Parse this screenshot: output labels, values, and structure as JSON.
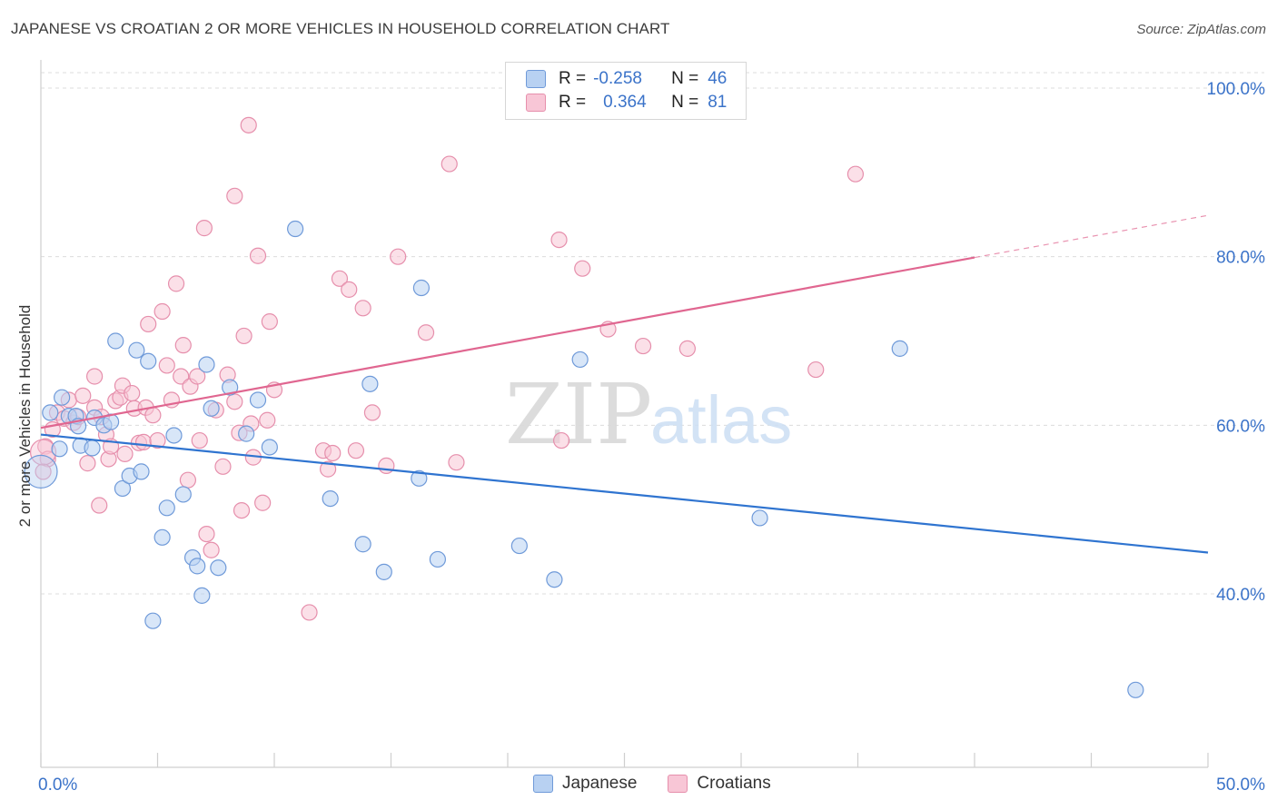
{
  "title": "JAPANESE VS CROATIAN 2 OR MORE VEHICLES IN HOUSEHOLD CORRELATION CHART",
  "source": "Source: ZipAtlas.com",
  "watermark": {
    "zip": "ZIP",
    "atlas": "atlas"
  },
  "legend": {
    "rows": [
      {
        "r_label": "R =",
        "r_value": "-0.258",
        "n_label": "N =",
        "n_value": "46"
      },
      {
        "r_label": "R =",
        "r_value": "0.364",
        "n_label": "N =",
        "n_value": "81"
      }
    ]
  },
  "bottom_legend": [
    "Japanese",
    "Croatians"
  ],
  "colors": {
    "japanese_fill": "#b8d1f2",
    "japanese_stroke": "#6f9ad9",
    "japanese_line": "#2f74d0",
    "croatian_fill": "#f8c6d6",
    "croatian_stroke": "#e68fac",
    "croatian_line": "#e06690",
    "axis_text": "#3b73c9",
    "grid": "#dcdcdc"
  },
  "chart_data": {
    "type": "scatter",
    "title": "JAPANESE VS CROATIAN 2 OR MORE VEHICLES IN HOUSEHOLD CORRELATION CHART",
    "xlabel": "",
    "ylabel": "2 or more Vehicles in Household",
    "xlim": [
      0,
      50
    ],
    "ylim": [
      20,
      102
    ],
    "x_tick_labels": [
      "0.0%",
      "50.0%"
    ],
    "y_ticks": [
      40,
      60,
      80,
      100
    ],
    "y_tick_labels": [
      "40.0%",
      "60.0%",
      "80.0%",
      "100.0%"
    ],
    "grid": true,
    "series": [
      {
        "name": "Japanese",
        "r": -0.258,
        "n": 46,
        "trend": {
          "x": [
            0,
            50
          ],
          "y": [
            58.9,
            44.9
          ]
        },
        "points": [
          [
            0.4,
            61.5
          ],
          [
            0.8,
            57.2
          ],
          [
            0.9,
            63.3
          ],
          [
            1.2,
            61.1
          ],
          [
            1.5,
            61.1
          ],
          [
            1.6,
            59.9
          ],
          [
            1.7,
            57.6
          ],
          [
            2.2,
            57.3
          ],
          [
            2.3,
            60.9
          ],
          [
            2.7,
            60.0
          ],
          [
            3.0,
            60.4
          ],
          [
            3.2,
            70.0
          ],
          [
            3.5,
            52.5
          ],
          [
            3.8,
            54.0
          ],
          [
            4.1,
            68.9
          ],
          [
            4.3,
            54.5
          ],
          [
            4.6,
            67.6
          ],
          [
            4.8,
            36.8
          ],
          [
            5.2,
            46.7
          ],
          [
            5.4,
            50.2
          ],
          [
            5.7,
            58.8
          ],
          [
            6.1,
            51.8
          ],
          [
            6.5,
            44.3
          ],
          [
            6.7,
            43.3
          ],
          [
            6.9,
            39.8
          ],
          [
            7.1,
            67.2
          ],
          [
            7.3,
            62.0
          ],
          [
            7.6,
            43.1
          ],
          [
            8.1,
            64.5
          ],
          [
            8.8,
            59.0
          ],
          [
            9.3,
            63.0
          ],
          [
            9.8,
            57.4
          ],
          [
            10.9,
            83.3
          ],
          [
            12.4,
            51.3
          ],
          [
            13.8,
            45.9
          ],
          [
            14.1,
            64.9
          ],
          [
            14.7,
            42.6
          ],
          [
            16.2,
            53.7
          ],
          [
            16.3,
            76.3
          ],
          [
            17.0,
            44.1
          ],
          [
            20.5,
            45.7
          ],
          [
            22.0,
            41.7
          ],
          [
            23.1,
            67.8
          ],
          [
            30.8,
            49.0
          ],
          [
            36.8,
            69.1
          ],
          [
            46.9,
            28.6
          ]
        ]
      },
      {
        "name": "Croatians",
        "r": 0.364,
        "n": 81,
        "trend": {
          "x": [
            0,
            40
          ],
          "y": [
            59.7,
            79.9
          ]
        },
        "trend_dashed": {
          "x": [
            40,
            50
          ],
          "y": [
            79.9,
            84.9
          ]
        },
        "points": [
          [
            0.2,
            57.5
          ],
          [
            0.3,
            56.0
          ],
          [
            0.5,
            59.5
          ],
          [
            0.7,
            61.5
          ],
          [
            1.0,
            60.8
          ],
          [
            1.2,
            63.0
          ],
          [
            1.4,
            60.3
          ],
          [
            1.6,
            61.0
          ],
          [
            1.8,
            63.5
          ],
          [
            2.0,
            55.5
          ],
          [
            2.3,
            62.1
          ],
          [
            2.3,
            65.8
          ],
          [
            2.5,
            50.5
          ],
          [
            2.6,
            61.0
          ],
          [
            2.8,
            58.9
          ],
          [
            2.9,
            56.0
          ],
          [
            3.0,
            57.5
          ],
          [
            3.2,
            62.9
          ],
          [
            3.4,
            63.3
          ],
          [
            3.5,
            64.7
          ],
          [
            3.6,
            56.6
          ],
          [
            3.9,
            63.8
          ],
          [
            4.0,
            62.0
          ],
          [
            4.2,
            57.9
          ],
          [
            4.4,
            58.0
          ],
          [
            4.5,
            62.1
          ],
          [
            4.6,
            72.0
          ],
          [
            4.8,
            61.2
          ],
          [
            5.0,
            58.2
          ],
          [
            5.2,
            73.5
          ],
          [
            5.4,
            67.1
          ],
          [
            5.6,
            63.0
          ],
          [
            5.8,
            76.8
          ],
          [
            6.0,
            65.8
          ],
          [
            6.1,
            69.5
          ],
          [
            6.3,
            53.5
          ],
          [
            6.4,
            64.6
          ],
          [
            6.7,
            65.8
          ],
          [
            6.8,
            58.2
          ],
          [
            7.0,
            83.4
          ],
          [
            7.1,
            47.1
          ],
          [
            7.3,
            45.2
          ],
          [
            7.5,
            61.8
          ],
          [
            7.8,
            55.1
          ],
          [
            8.0,
            66.0
          ],
          [
            8.3,
            62.8
          ],
          [
            8.3,
            87.2
          ],
          [
            8.5,
            59.1
          ],
          [
            8.6,
            49.9
          ],
          [
            8.7,
            70.6
          ],
          [
            8.9,
            95.6
          ],
          [
            9.0,
            60.2
          ],
          [
            9.1,
            56.2
          ],
          [
            9.3,
            80.1
          ],
          [
            9.5,
            50.8
          ],
          [
            9.7,
            60.6
          ],
          [
            9.8,
            72.3
          ],
          [
            10.0,
            64.2
          ],
          [
            11.5,
            37.8
          ],
          [
            12.1,
            57.0
          ],
          [
            12.3,
            54.8
          ],
          [
            12.5,
            56.7
          ],
          [
            12.8,
            77.4
          ],
          [
            13.2,
            76.1
          ],
          [
            13.5,
            57.0
          ],
          [
            13.8,
            73.9
          ],
          [
            14.2,
            61.5
          ],
          [
            14.8,
            55.2
          ],
          [
            15.3,
            80.0
          ],
          [
            16.5,
            71.0
          ],
          [
            17.5,
            91.0
          ],
          [
            17.8,
            55.6
          ],
          [
            22.2,
            82.0
          ],
          [
            22.3,
            58.2
          ],
          [
            23.2,
            78.6
          ],
          [
            24.3,
            71.4
          ],
          [
            25.8,
            69.4
          ],
          [
            27.7,
            69.1
          ],
          [
            33.2,
            66.6
          ],
          [
            34.9,
            89.8
          ],
          [
            0.1,
            54.5
          ]
        ]
      }
    ]
  }
}
